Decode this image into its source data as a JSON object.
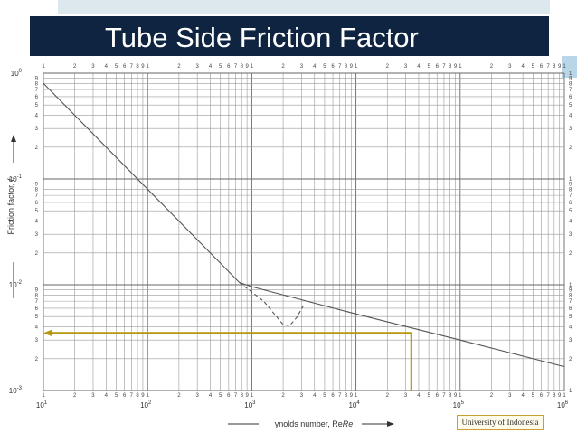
{
  "slide": {
    "title": "Tube Side Friction Factor",
    "footer": "University of Indonesia"
  },
  "chart_data": {
    "type": "line",
    "xscale": "log",
    "yscale": "log",
    "xlim": [
      10,
      1000000
    ],
    "ylim": [
      0.001,
      1
    ],
    "grid": true,
    "xlabel": "Reynolds number, Re",
    "ylabel": "Friction factor, f_i",
    "x_decade_labels": [
      {
        "base": "10",
        "exp": "1",
        "value": 10
      },
      {
        "base": "10",
        "exp": "2",
        "value": 100
      },
      {
        "base": "10",
        "exp": "3",
        "value": 1000
      },
      {
        "base": "10",
        "exp": "4",
        "value": 10000
      },
      {
        "base": "10",
        "exp": "5",
        "value": 100000
      },
      {
        "base": "10",
        "exp": "6",
        "value": 1000000
      }
    ],
    "y_decade_labels": [
      {
        "base": "10",
        "exp": "-3",
        "value": 0.001
      },
      {
        "base": "10",
        "exp": "-2",
        "value": 0.01
      },
      {
        "base": "10",
        "exp": "-1",
        "value": 0.1
      },
      {
        "base": "10",
        "exp": "0",
        "value": 1
      }
    ],
    "minor_tick_labels": [
      "1",
      "2",
      "3",
      "4",
      "5",
      "6",
      "7",
      "8",
      "9"
    ],
    "series": [
      {
        "style": "solid",
        "color": "#555555",
        "x": [
          10,
          760
        ],
        "y": [
          0.8,
          0.0105
        ]
      },
      {
        "style": "solid",
        "color": "#555555",
        "x": [
          760,
          1000,
          10000,
          100000,
          1000000
        ],
        "y": [
          0.0105,
          0.0096,
          0.0053,
          0.003,
          0.00168
        ]
      },
      {
        "style": "dashed",
        "color": "#555555",
        "x": [
          760,
          1300,
          2000,
          2300,
          2700,
          3200
        ],
        "y": [
          0.0105,
          0.007,
          0.0042,
          0.0041,
          0.0049,
          0.0066
        ]
      }
    ],
    "annotation": {
      "color": "#b8960c",
      "x": 34000,
      "y": 0.0035,
      "arrow": "to-y-axis"
    }
  }
}
